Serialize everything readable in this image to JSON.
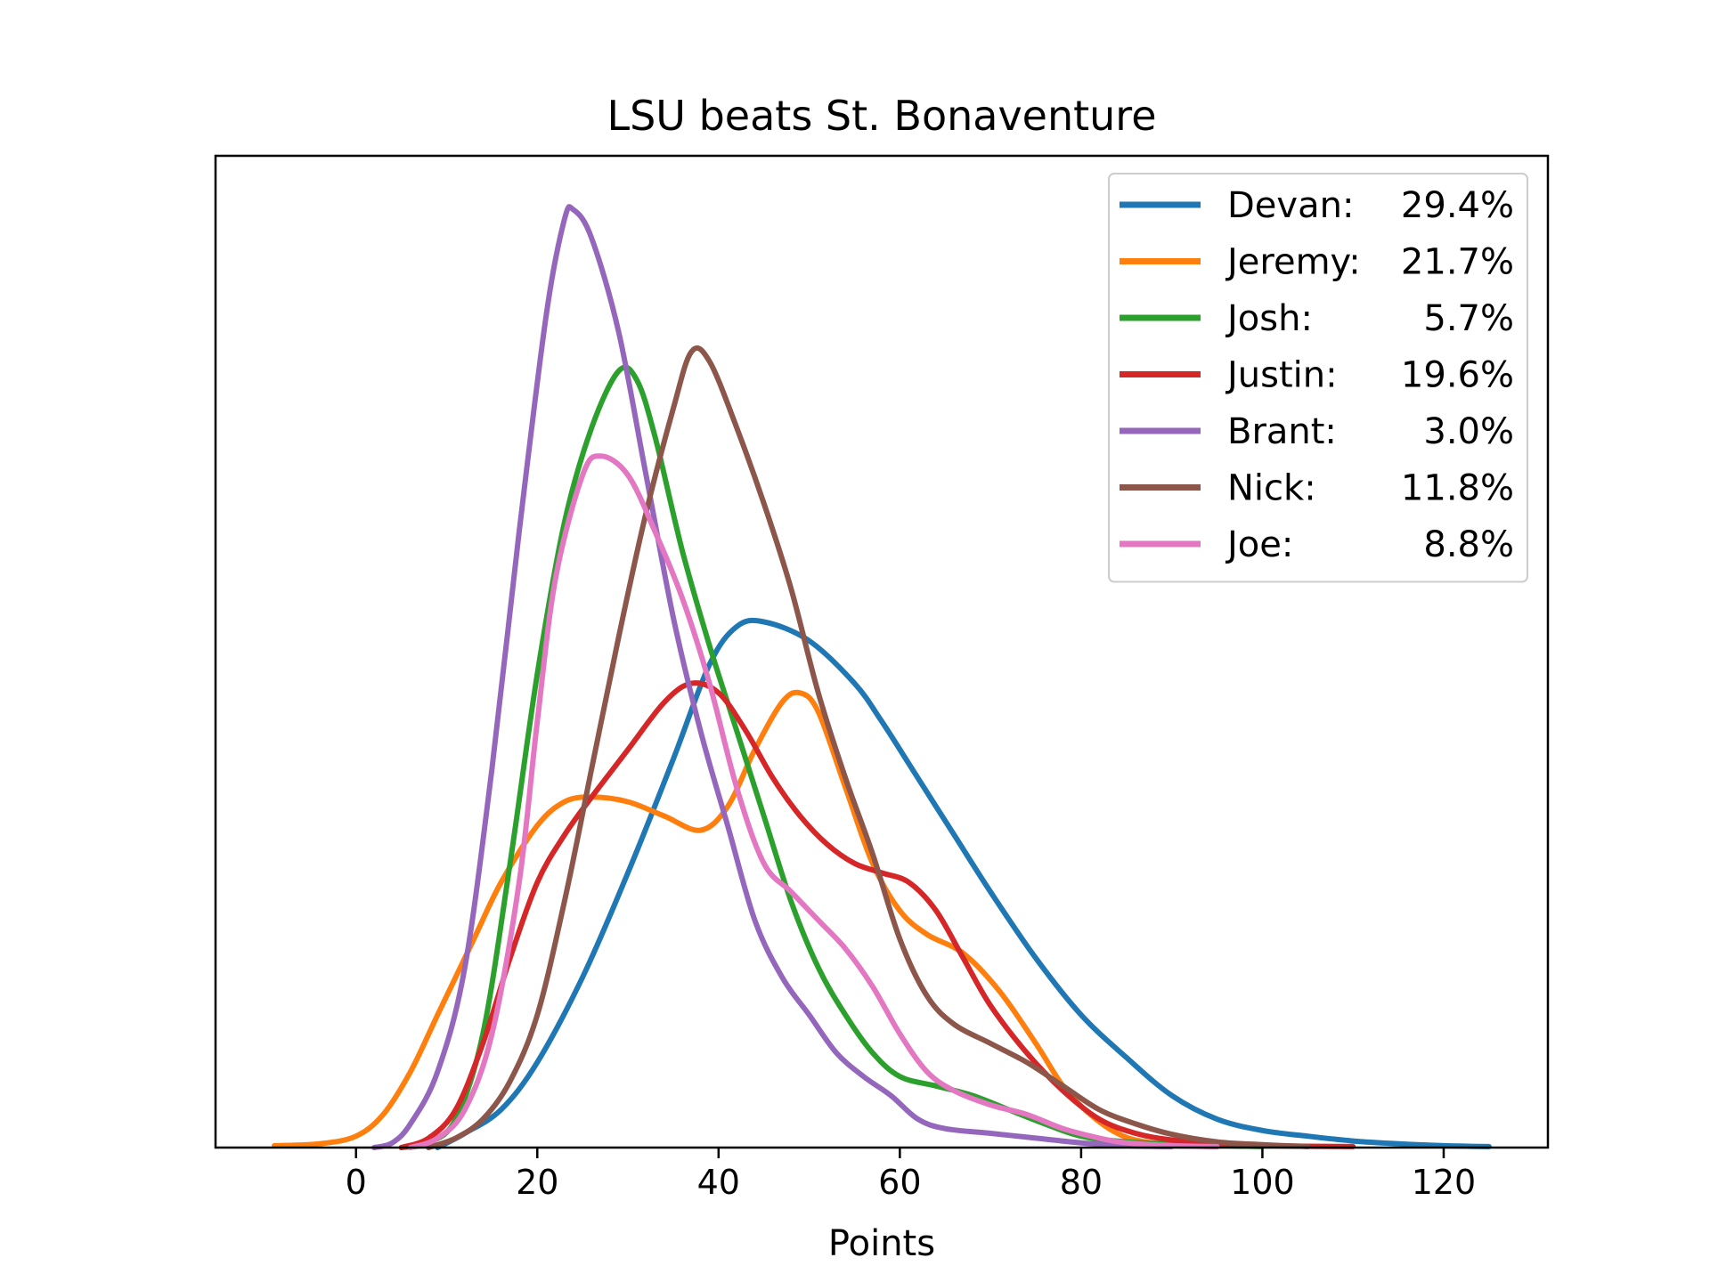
{
  "chart_data": {
    "type": "line",
    "title": "LSU beats St. Bonaventure",
    "xlabel": "Points",
    "ylabel": "",
    "xlim": [
      -15.5,
      131.5
    ],
    "ylim": [
      0,
      1.0
    ],
    "x_ticks": [
      0,
      20,
      40,
      60,
      80,
      100,
      120
    ],
    "y_ticks_shown": false,
    "legend_position": "top-right",
    "series": [
      {
        "name": "Devan",
        "share": "29.4%",
        "color": "#1f77b4",
        "points": [
          [
            9,
            0
          ],
          [
            12,
            0.015
          ],
          [
            16,
            0.04
          ],
          [
            20,
            0.09
          ],
          [
            25,
            0.18
          ],
          [
            30,
            0.29
          ],
          [
            35,
            0.41
          ],
          [
            39,
            0.51
          ],
          [
            42,
            0.55
          ],
          [
            45,
            0.555
          ],
          [
            50,
            0.535
          ],
          [
            55,
            0.49
          ],
          [
            58,
            0.45
          ],
          [
            62,
            0.39
          ],
          [
            66,
            0.33
          ],
          [
            70,
            0.27
          ],
          [
            75,
            0.2
          ],
          [
            80,
            0.14
          ],
          [
            85,
            0.095
          ],
          [
            90,
            0.055
          ],
          [
            95,
            0.03
          ],
          [
            100,
            0.018
          ],
          [
            105,
            0.012
          ],
          [
            110,
            0.007
          ],
          [
            115,
            0.004
          ],
          [
            120,
            0.002
          ],
          [
            125,
            0.001
          ]
        ]
      },
      {
        "name": "Jeremy",
        "share": "21.7%",
        "color": "#ff7f0e",
        "points": [
          [
            -9,
            0.002
          ],
          [
            -4,
            0.004
          ],
          [
            0,
            0.012
          ],
          [
            3,
            0.035
          ],
          [
            6,
            0.08
          ],
          [
            9,
            0.14
          ],
          [
            13,
            0.22
          ],
          [
            16,
            0.28
          ],
          [
            20,
            0.34
          ],
          [
            23,
            0.365
          ],
          [
            26,
            0.37
          ],
          [
            30,
            0.365
          ],
          [
            34,
            0.35
          ],
          [
            38,
            0.335
          ],
          [
            41,
            0.36
          ],
          [
            44,
            0.42
          ],
          [
            47,
            0.47
          ],
          [
            49,
            0.48
          ],
          [
            51,
            0.46
          ],
          [
            54,
            0.38
          ],
          [
            57,
            0.3
          ],
          [
            60,
            0.25
          ],
          [
            63,
            0.225
          ],
          [
            67,
            0.205
          ],
          [
            71,
            0.165
          ],
          [
            75,
            0.11
          ],
          [
            78,
            0.065
          ],
          [
            81,
            0.035
          ],
          [
            84,
            0.015
          ],
          [
            87,
            0.006
          ],
          [
            92,
            0.002
          ],
          [
            95,
            0.001
          ]
        ]
      },
      {
        "name": "Josh",
        "share": "5.7%",
        "color": "#2ca02c",
        "points": [
          [
            5,
            0
          ],
          [
            8,
            0.005
          ],
          [
            11,
            0.03
          ],
          [
            14,
            0.12
          ],
          [
            17,
            0.3
          ],
          [
            20,
            0.5
          ],
          [
            23,
            0.66
          ],
          [
            26,
            0.76
          ],
          [
            29,
            0.82
          ],
          [
            31,
            0.81
          ],
          [
            33,
            0.75
          ],
          [
            36,
            0.63
          ],
          [
            39,
            0.53
          ],
          [
            42,
            0.44
          ],
          [
            45,
            0.35
          ],
          [
            48,
            0.26
          ],
          [
            51,
            0.19
          ],
          [
            54,
            0.14
          ],
          [
            57,
            0.1
          ],
          [
            60,
            0.075
          ],
          [
            64,
            0.065
          ],
          [
            68,
            0.055
          ],
          [
            72,
            0.04
          ],
          [
            76,
            0.025
          ],
          [
            80,
            0.012
          ],
          [
            85,
            0.006
          ],
          [
            92,
            0.003
          ],
          [
            100,
            0.001
          ]
        ]
      },
      {
        "name": "Justin",
        "share": "19.6%",
        "color": "#d62728",
        "points": [
          [
            5,
            0
          ],
          [
            8,
            0.01
          ],
          [
            11,
            0.04
          ],
          [
            14,
            0.11
          ],
          [
            17,
            0.2
          ],
          [
            20,
            0.28
          ],
          [
            23,
            0.33
          ],
          [
            26,
            0.37
          ],
          [
            30,
            0.42
          ],
          [
            34,
            0.47
          ],
          [
            37,
            0.49
          ],
          [
            40,
            0.48
          ],
          [
            43,
            0.44
          ],
          [
            46,
            0.39
          ],
          [
            49,
            0.35
          ],
          [
            52,
            0.32
          ],
          [
            55,
            0.3
          ],
          [
            58,
            0.29
          ],
          [
            61,
            0.28
          ],
          [
            64,
            0.25
          ],
          [
            67,
            0.2
          ],
          [
            70,
            0.15
          ],
          [
            74,
            0.1
          ],
          [
            78,
            0.06
          ],
          [
            82,
            0.03
          ],
          [
            86,
            0.015
          ],
          [
            90,
            0.008
          ],
          [
            95,
            0.004
          ],
          [
            100,
            0.002
          ],
          [
            110,
            0.001
          ]
        ]
      },
      {
        "name": "Brant",
        "share": "3.0%",
        "color": "#9467bd",
        "points": [
          [
            2,
            0
          ],
          [
            4,
            0.005
          ],
          [
            6,
            0.025
          ],
          [
            9,
            0.08
          ],
          [
            12,
            0.19
          ],
          [
            15,
            0.4
          ],
          [
            18,
            0.65
          ],
          [
            21,
            0.88
          ],
          [
            23,
            0.98
          ],
          [
            24,
            0.99
          ],
          [
            26,
            0.96
          ],
          [
            29,
            0.86
          ],
          [
            32,
            0.71
          ],
          [
            35,
            0.56
          ],
          [
            38,
            0.44
          ],
          [
            41,
            0.34
          ],
          [
            44,
            0.24
          ],
          [
            47,
            0.18
          ],
          [
            50,
            0.14
          ],
          [
            53,
            0.1
          ],
          [
            56,
            0.075
          ],
          [
            59,
            0.055
          ],
          [
            62,
            0.03
          ],
          [
            65,
            0.02
          ],
          [
            70,
            0.015
          ],
          [
            75,
            0.01
          ],
          [
            80,
            0.005
          ],
          [
            85,
            0.002
          ],
          [
            90,
            0.001
          ]
        ]
      },
      {
        "name": "Nick",
        "share": "11.8%",
        "color": "#8c564b",
        "points": [
          [
            8,
            0
          ],
          [
            11,
            0.01
          ],
          [
            14,
            0.03
          ],
          [
            17,
            0.07
          ],
          [
            20,
            0.14
          ],
          [
            23,
            0.26
          ],
          [
            26,
            0.4
          ],
          [
            29,
            0.54
          ],
          [
            32,
            0.67
          ],
          [
            35,
            0.78
          ],
          [
            37,
            0.84
          ],
          [
            39,
            0.83
          ],
          [
            42,
            0.76
          ],
          [
            45,
            0.68
          ],
          [
            48,
            0.59
          ],
          [
            51,
            0.48
          ],
          [
            54,
            0.39
          ],
          [
            57,
            0.31
          ],
          [
            60,
            0.22
          ],
          [
            63,
            0.16
          ],
          [
            66,
            0.13
          ],
          [
            70,
            0.11
          ],
          [
            74,
            0.09
          ],
          [
            78,
            0.065
          ],
          [
            82,
            0.04
          ],
          [
            86,
            0.025
          ],
          [
            90,
            0.014
          ],
          [
            95,
            0.006
          ],
          [
            100,
            0.003
          ],
          [
            105,
            0.001
          ]
        ]
      },
      {
        "name": "Joe",
        "share": "8.8%",
        "color": "#e377c2",
        "points": [
          [
            6,
            0
          ],
          [
            9,
            0.01
          ],
          [
            12,
            0.04
          ],
          [
            15,
            0.12
          ],
          [
            18,
            0.28
          ],
          [
            20,
            0.45
          ],
          [
            22,
            0.6
          ],
          [
            25,
            0.71
          ],
          [
            27,
            0.73
          ],
          [
            30,
            0.71
          ],
          [
            33,
            0.65
          ],
          [
            36,
            0.58
          ],
          [
            39,
            0.49
          ],
          [
            42,
            0.38
          ],
          [
            45,
            0.3
          ],
          [
            48,
            0.27
          ],
          [
            51,
            0.24
          ],
          [
            54,
            0.21
          ],
          [
            57,
            0.17
          ],
          [
            60,
            0.12
          ],
          [
            63,
            0.08
          ],
          [
            66,
            0.06
          ],
          [
            70,
            0.045
          ],
          [
            74,
            0.035
          ],
          [
            78,
            0.02
          ],
          [
            82,
            0.01
          ],
          [
            85,
            0.005
          ],
          [
            90,
            0.002
          ],
          [
            95,
            0.001
          ]
        ]
      }
    ]
  }
}
